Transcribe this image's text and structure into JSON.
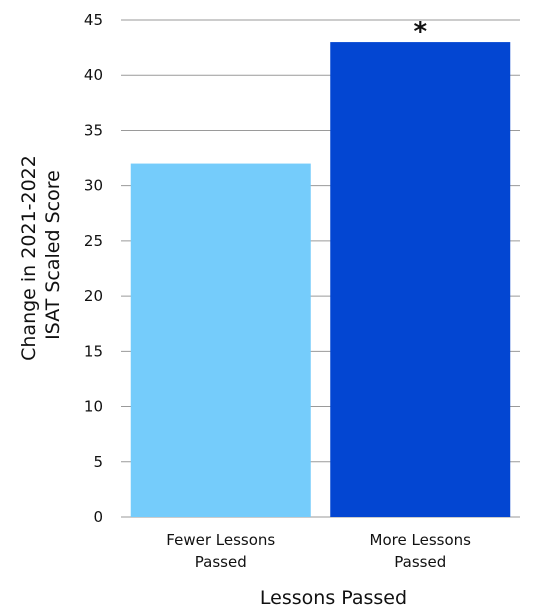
{
  "chart_data": {
    "type": "bar",
    "categories": [
      [
        "Fewer Lessons",
        "Passed"
      ],
      [
        "More Lessons",
        "Passed"
      ]
    ],
    "values": [
      32,
      43
    ],
    "bar_colors": [
      "#75CCFB",
      "#0346D2"
    ],
    "annotations": [
      "",
      "*"
    ],
    "xlabel": "Lessons Passed",
    "ylabel": [
      "Change in 2021-2022",
      "ISAT Scaled Score"
    ],
    "ylim": [
      0,
      45
    ],
    "yticks": [
      0,
      5,
      10,
      15,
      20,
      25,
      30,
      35,
      40,
      45
    ],
    "grid": true,
    "legend": "none"
  }
}
